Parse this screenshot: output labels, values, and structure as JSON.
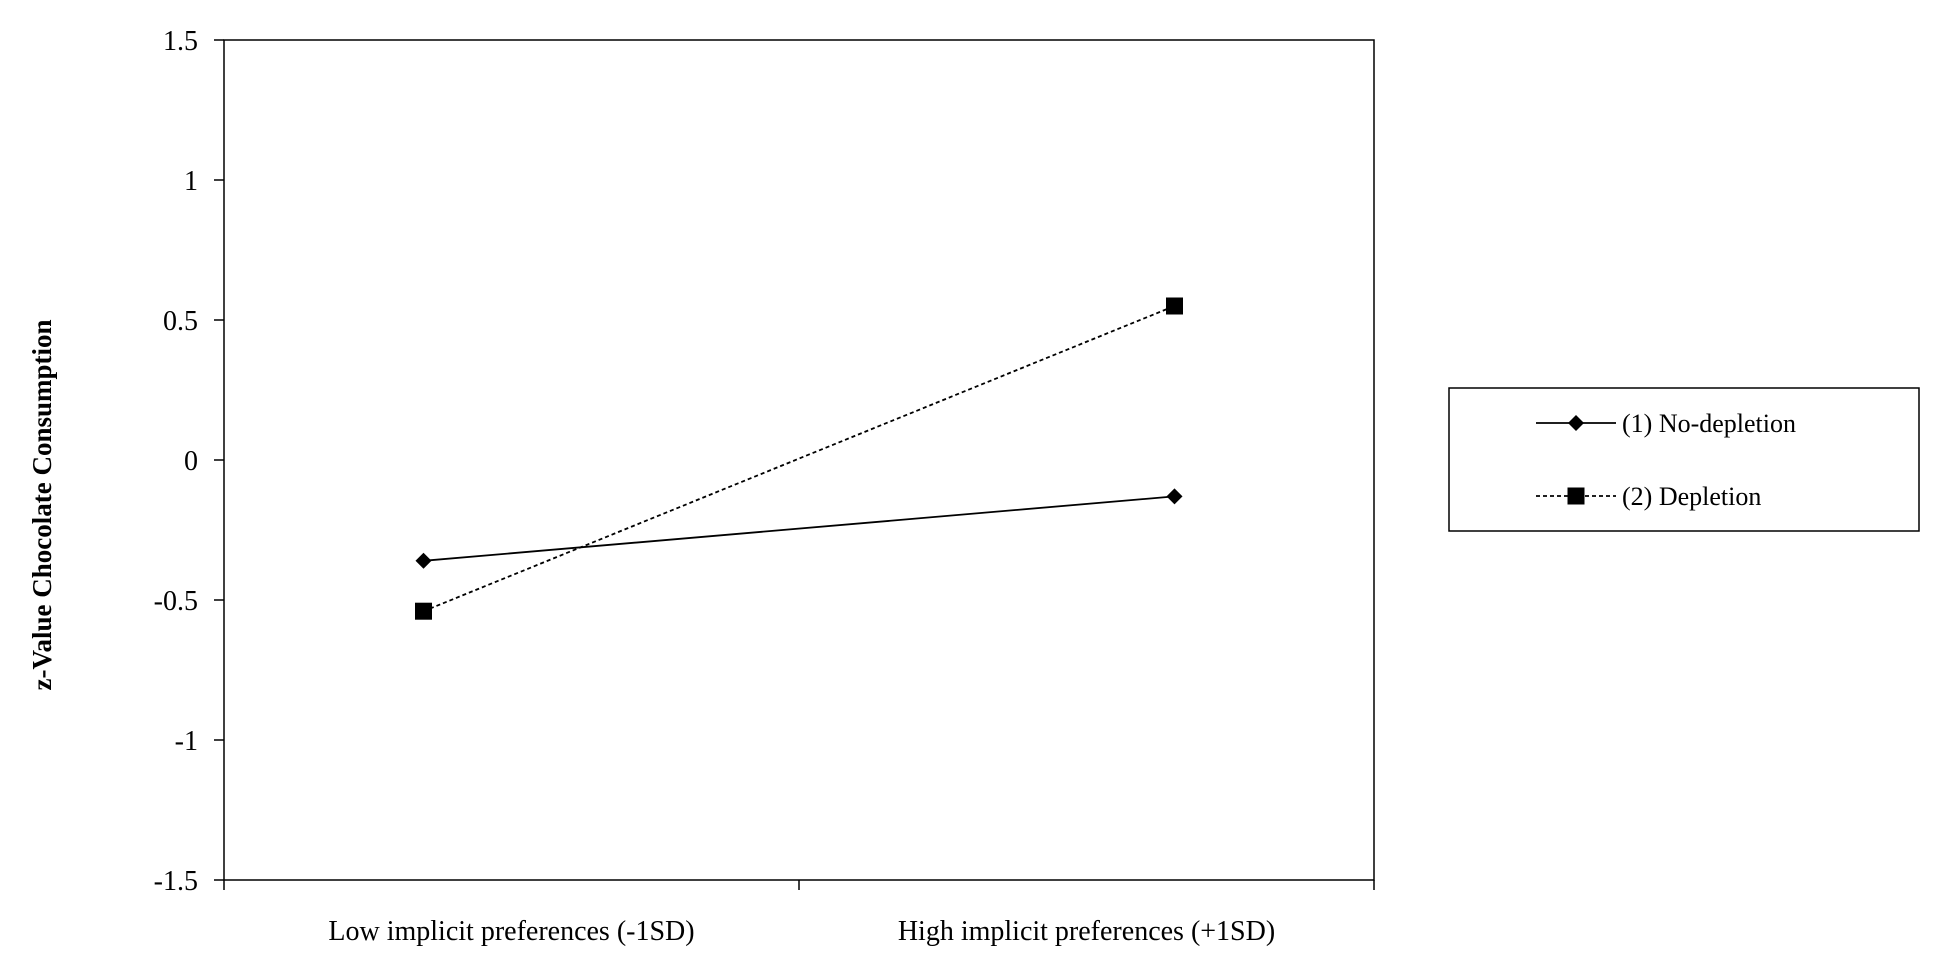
{
  "chart_data": {
    "type": "line",
    "categories": [
      "Low implicit preferences (-1SD)",
      "High implicit preferences (+1SD)"
    ],
    "series": [
      {
        "name": "(1) No-depletion",
        "values": [
          -0.36,
          -0.13
        ],
        "marker": "diamond",
        "line_style": "solid",
        "color": "#000000"
      },
      {
        "name": "(2) Depletion",
        "values": [
          -0.54,
          0.55
        ],
        "marker": "square",
        "line_style": "dashed",
        "color": "#000000"
      }
    ],
    "ylabel": "z-Value Chocolate Consumption",
    "ylim": [
      -1.5,
      1.5
    ],
    "yticks": [
      -1.5,
      -1,
      -0.5,
      0,
      0.5,
      1,
      1.5
    ],
    "ytick_labels": [
      "-1.5",
      "-1",
      "-0.5",
      "0",
      "0.5",
      "1",
      "1.5"
    ],
    "grid": false,
    "legend_position": "right"
  }
}
